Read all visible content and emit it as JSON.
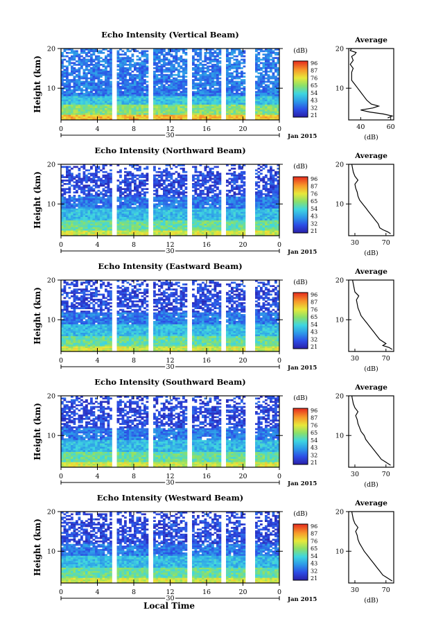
{
  "figure": {
    "x_axis_label": "Local Time",
    "date_label": "Jan 2015",
    "day_label": "30",
    "colorbar_unit": "(dB)",
    "average_title": "Average",
    "average_unit": "(dB)",
    "y_label": "Height (km)"
  },
  "chart_data": [
    {
      "type": "heatmap",
      "title": "Echo Intensity (Vertical Beam)",
      "x_ticks": [
        "0",
        "4",
        "8",
        "12",
        "16",
        "20",
        "0"
      ],
      "y_ticks": [
        "20",
        "10"
      ],
      "ylim": [
        2,
        20
      ],
      "colorbar_ticks": [
        "96",
        "87",
        "76",
        "65",
        "54",
        "43",
        "32",
        "21"
      ],
      "avg_xticks": [
        "40",
        "60"
      ],
      "avg_xlim": [
        32,
        62
      ],
      "avg_profile": [
        [
          2.5,
          58
        ],
        [
          3,
          61
        ],
        [
          3.5,
          55
        ],
        [
          4,
          46
        ],
        [
          4.5,
          40
        ],
        [
          5,
          48
        ],
        [
          5.5,
          52
        ],
        [
          6,
          47
        ],
        [
          7,
          44
        ],
        [
          8,
          42
        ],
        [
          9,
          40
        ],
        [
          10,
          38
        ],
        [
          11,
          36
        ],
        [
          12,
          34
        ],
        [
          13,
          34
        ],
        [
          14,
          34
        ],
        [
          15,
          35
        ],
        [
          16,
          33
        ],
        [
          17,
          35
        ],
        [
          18,
          34
        ],
        [
          18.5,
          36
        ],
        [
          19,
          37
        ],
        [
          19.5,
          33
        ],
        [
          20,
          34
        ]
      ],
      "gaps": [
        [
          5.5,
          6.0
        ],
        [
          9.6,
          10.2
        ],
        [
          13.8,
          14.3
        ],
        [
          17.6,
          18.0
        ],
        [
          20.4,
          21.4
        ]
      ]
    },
    {
      "type": "heatmap",
      "title": "Echo Intensity (Northward Beam)",
      "x_ticks": [
        "0",
        "4",
        "8",
        "12",
        "16",
        "20",
        "0"
      ],
      "y_ticks": [
        "20",
        "10"
      ],
      "ylim": [
        2,
        20
      ],
      "colorbar_ticks": [
        "96",
        "87",
        "76",
        "65",
        "54",
        "43",
        "32",
        "21"
      ],
      "avg_xticks": [
        "30",
        "70"
      ],
      "avg_xlim": [
        22,
        80
      ],
      "avg_profile": [
        [
          2.5,
          76
        ],
        [
          3,
          72
        ],
        [
          3.5,
          66
        ],
        [
          4,
          62
        ],
        [
          5,
          60
        ],
        [
          6,
          56
        ],
        [
          7,
          52
        ],
        [
          8,
          48
        ],
        [
          9,
          44
        ],
        [
          10,
          40
        ],
        [
          11,
          36
        ],
        [
          12,
          34
        ],
        [
          13,
          33
        ],
        [
          14,
          31
        ],
        [
          15,
          30
        ],
        [
          16,
          34
        ],
        [
          17,
          30
        ],
        [
          18,
          28
        ],
        [
          19,
          27
        ],
        [
          20,
          26
        ]
      ],
      "gaps": [
        [
          5.5,
          6.0
        ],
        [
          9.6,
          10.2
        ],
        [
          13.8,
          14.3
        ],
        [
          17.6,
          18.0
        ],
        [
          20.4,
          21.4
        ]
      ]
    },
    {
      "type": "heatmap",
      "title": "Echo Intensity (Eastward Beam)",
      "x_ticks": [
        "0",
        "4",
        "8",
        "12",
        "16",
        "20",
        "0"
      ],
      "y_ticks": [
        "20",
        "10"
      ],
      "ylim": [
        2,
        20
      ],
      "colorbar_ticks": [
        "96",
        "87",
        "76",
        "65",
        "54",
        "43",
        "32",
        "21"
      ],
      "avg_xticks": [
        "30",
        "70"
      ],
      "avg_xlim": [
        22,
        80
      ],
      "avg_profile": [
        [
          2.5,
          78
        ],
        [
          3,
          74
        ],
        [
          3.5,
          66
        ],
        [
          4,
          70
        ],
        [
          5,
          62
        ],
        [
          6,
          58
        ],
        [
          7,
          54
        ],
        [
          8,
          50
        ],
        [
          9,
          46
        ],
        [
          10,
          42
        ],
        [
          11,
          38
        ],
        [
          12,
          36
        ],
        [
          13,
          34
        ],
        [
          14,
          33
        ],
        [
          15,
          32
        ],
        [
          16,
          35
        ],
        [
          17,
          30
        ],
        [
          18,
          29
        ],
        [
          19,
          28
        ],
        [
          20,
          27
        ]
      ],
      "gaps": [
        [
          5.5,
          6.0
        ],
        [
          9.6,
          10.2
        ],
        [
          13.8,
          14.3
        ],
        [
          17.6,
          18.0
        ],
        [
          20.4,
          21.4
        ]
      ]
    },
    {
      "type": "heatmap",
      "title": "Echo Intensity (Southward Beam)",
      "x_ticks": [
        "0",
        "4",
        "8",
        "12",
        "16",
        "20",
        "0"
      ],
      "y_ticks": [
        "20",
        "10"
      ],
      "ylim": [
        2,
        20
      ],
      "colorbar_ticks": [
        "96",
        "87",
        "76",
        "65",
        "54",
        "43",
        "32",
        "21"
      ],
      "avg_xticks": [
        "30",
        "70"
      ],
      "avg_xlim": [
        22,
        80
      ],
      "avg_profile": [
        [
          2.5,
          76
        ],
        [
          3,
          72
        ],
        [
          3.5,
          68
        ],
        [
          4,
          64
        ],
        [
          5,
          60
        ],
        [
          6,
          56
        ],
        [
          7,
          52
        ],
        [
          8,
          48
        ],
        [
          9,
          44
        ],
        [
          10,
          42
        ],
        [
          11,
          38
        ],
        [
          12,
          36
        ],
        [
          13,
          34
        ],
        [
          14,
          33
        ],
        [
          15,
          31
        ],
        [
          16,
          34
        ],
        [
          17,
          30
        ],
        [
          18,
          28
        ],
        [
          19,
          27
        ],
        [
          20,
          26
        ]
      ],
      "gaps": [
        [
          5.5,
          6.0
        ],
        [
          9.6,
          10.2
        ],
        [
          13.8,
          14.3
        ],
        [
          17.6,
          18.0
        ],
        [
          20.4,
          21.4
        ]
      ]
    },
    {
      "type": "heatmap",
      "title": "Echo Intensity (Westward Beam)",
      "x_ticks": [
        "0",
        "4",
        "8",
        "12",
        "16",
        "20",
        "0"
      ],
      "y_ticks": [
        "20",
        "10"
      ],
      "ylim": [
        2,
        20
      ],
      "colorbar_ticks": [
        "96",
        "87",
        "76",
        "65",
        "54",
        "43",
        "32",
        "21"
      ],
      "avg_xticks": [
        "30",
        "70"
      ],
      "avg_xlim": [
        22,
        80
      ],
      "avg_profile": [
        [
          2.5,
          78
        ],
        [
          3,
          74
        ],
        [
          3.5,
          70
        ],
        [
          4,
          66
        ],
        [
          5,
          62
        ],
        [
          6,
          58
        ],
        [
          7,
          54
        ],
        [
          8,
          50
        ],
        [
          9,
          46
        ],
        [
          10,
          42
        ],
        [
          11,
          39
        ],
        [
          12,
          36
        ],
        [
          13,
          34
        ],
        [
          14,
          33
        ],
        [
          15,
          31
        ],
        [
          16,
          34
        ],
        [
          17,
          30
        ],
        [
          18,
          28
        ],
        [
          19,
          27
        ],
        [
          20,
          26
        ]
      ],
      "gaps": [
        [
          5.5,
          6.0
        ],
        [
          9.6,
          10.2
        ],
        [
          13.8,
          14.3
        ],
        [
          17.6,
          18.0
        ],
        [
          20.4,
          21.4
        ]
      ]
    }
  ]
}
